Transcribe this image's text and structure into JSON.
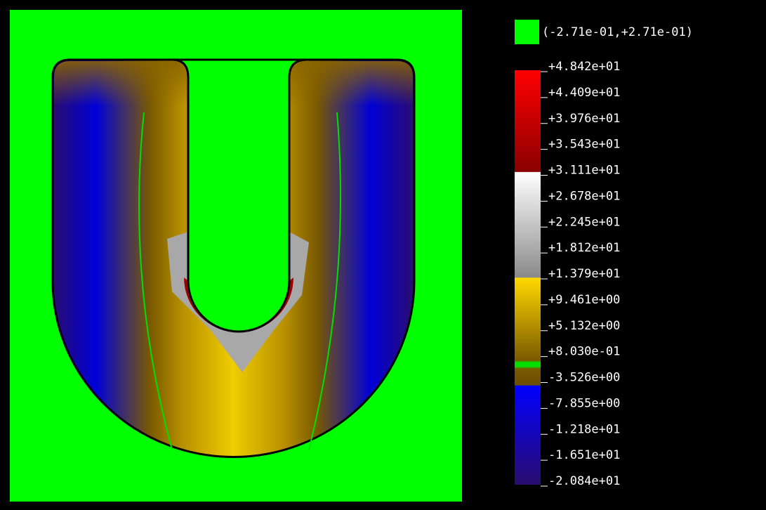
{
  "legend": {
    "zero_band": "(-2.71e-01,+2.71e-01)",
    "labels": [
      "+4.842e+01",
      "+4.409e+01",
      "+3.976e+01",
      "+3.543e+01",
      "+3.111e+01",
      "+2.678e+01",
      "+2.245e+01",
      "+1.812e+01",
      "+1.379e+01",
      "+9.461e+00",
      "+5.132e+00",
      "+8.030e-01",
      "-3.526e+00",
      "-7.855e+00",
      "-1.218e+01",
      "-1.651e+01",
      "-2.084e+01"
    ]
  }
}
